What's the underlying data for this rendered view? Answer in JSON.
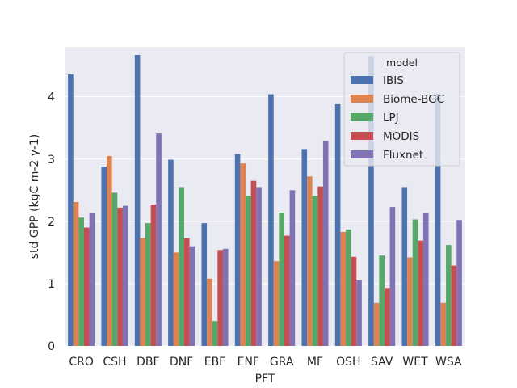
{
  "chart_data": {
    "type": "bar",
    "title": "",
    "xlabel": "PFT",
    "ylabel": "std GPP (kgC m-2 y-1)",
    "ylim": [
      0,
      4.8
    ],
    "yticks": [
      0,
      1,
      2,
      3,
      4
    ],
    "grid": true,
    "legend": {
      "title": "model",
      "placement": "top-right"
    },
    "categories": [
      "CRO",
      "CSH",
      "DBF",
      "DNF",
      "EBF",
      "ENF",
      "GRA",
      "MF",
      "OSH",
      "SAV",
      "WET",
      "WSA"
    ],
    "series": [
      {
        "name": "IBIS",
        "color": "#4c72b0",
        "values": [
          4.36,
          2.88,
          4.67,
          2.99,
          1.97,
          3.08,
          4.04,
          3.16,
          3.88,
          4.65,
          2.55,
          4.05
        ]
      },
      {
        "name": "Biome-BGC",
        "color": "#dd8452",
        "values": [
          2.31,
          3.05,
          1.73,
          1.5,
          1.08,
          2.93,
          1.36,
          2.72,
          1.83,
          0.69,
          1.42,
          0.69
        ]
      },
      {
        "name": "LPJ",
        "color": "#55a868",
        "values": [
          2.06,
          2.46,
          1.97,
          2.55,
          0.4,
          2.41,
          2.14,
          2.41,
          1.87,
          1.45,
          2.03,
          1.62
        ]
      },
      {
        "name": "MODIS",
        "color": "#c44e52",
        "values": [
          1.9,
          2.22,
          2.27,
          1.73,
          1.54,
          2.65,
          1.77,
          2.56,
          1.43,
          0.93,
          1.69,
          1.29
        ]
      },
      {
        "name": "Fluxnet",
        "color": "#8172b3",
        "values": [
          2.13,
          2.25,
          3.41,
          1.6,
          1.56,
          2.55,
          2.5,
          3.29,
          1.05,
          2.23,
          2.13,
          2.02
        ]
      }
    ]
  }
}
